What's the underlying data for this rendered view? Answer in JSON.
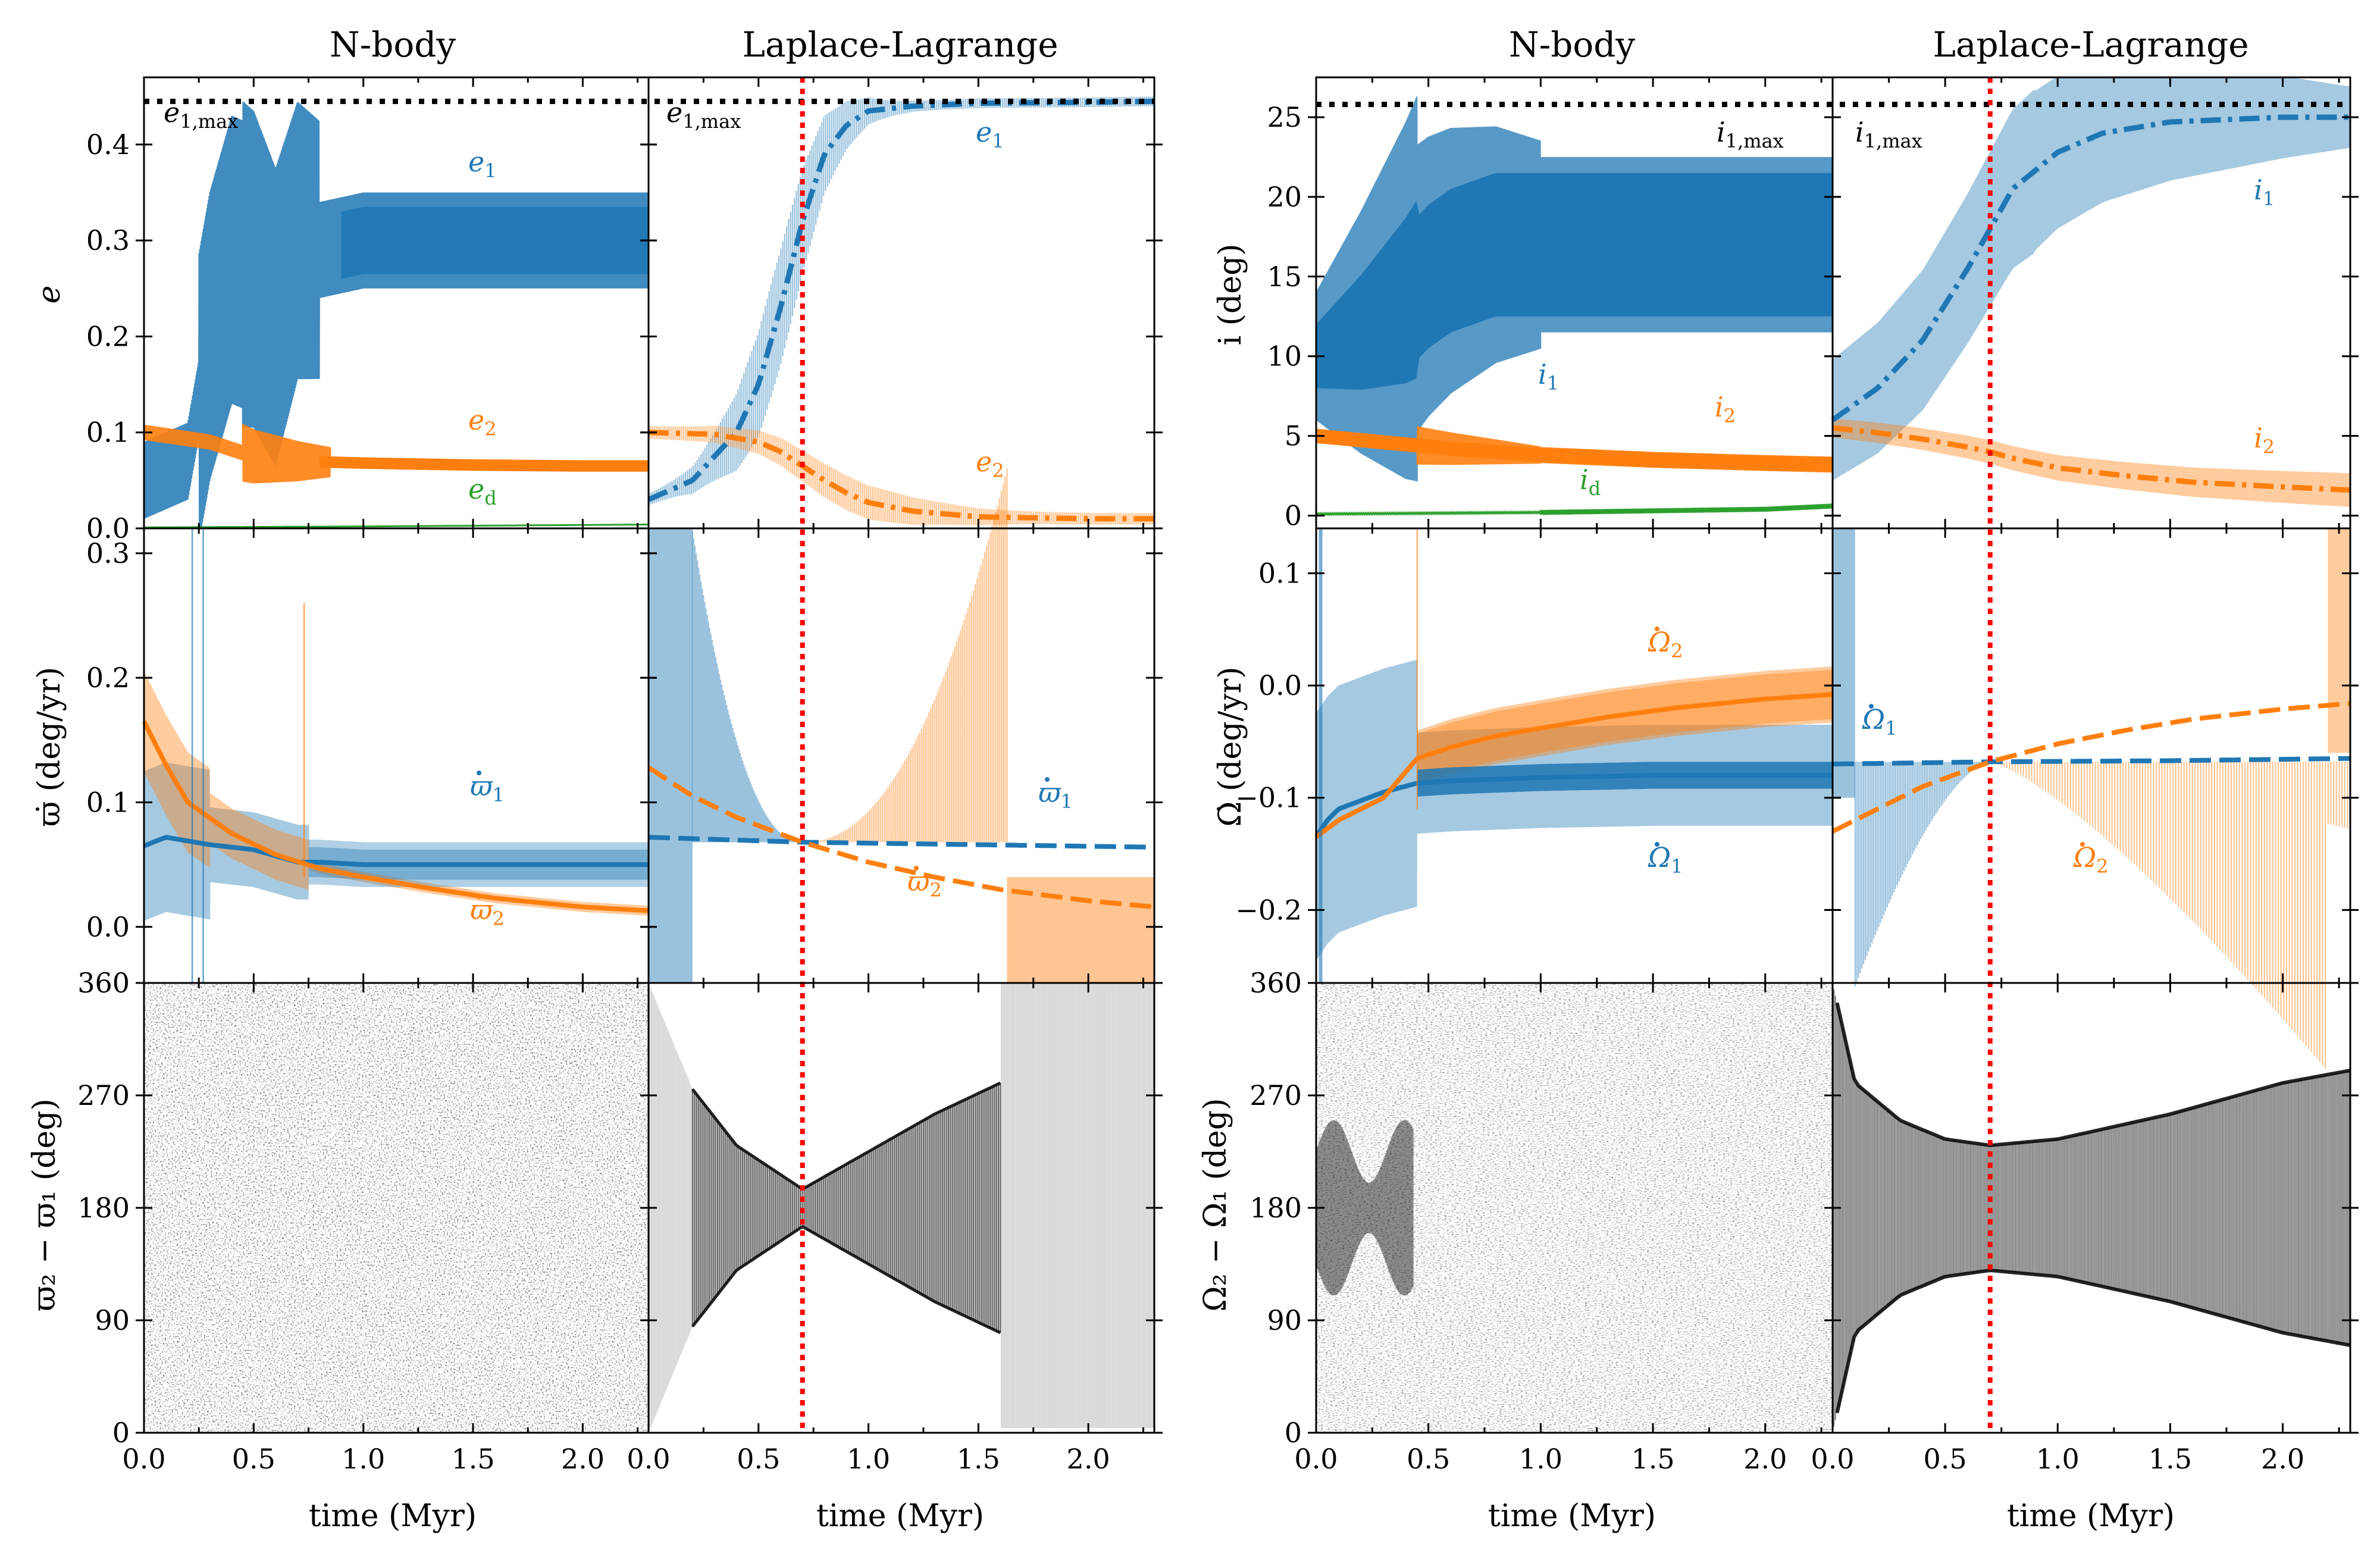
{
  "colors": {
    "c1": "#1f77b4",
    "c2": "#ff7f0e",
    "cd": "#2ca02c",
    "marker": "#ff0000",
    "ink": "#000000"
  },
  "titles": {
    "left_nbody": "N-body",
    "left_ll": "Laplace-Lagrange",
    "right_nbody": "N-body",
    "right_ll": "Laplace-Lagrange"
  },
  "x_axis": {
    "label": "time (Myr)",
    "ticks": [
      "0.0",
      "0.5",
      "1.0",
      "1.5",
      "2.0"
    ],
    "ticks_ll": [
      "0.0",
      "0.5",
      "1.0",
      "1.5",
      "2.0"
    ],
    "range": [
      0,
      2.3
    ],
    "marker_time": 0.7
  },
  "y_labels": {
    "e": "e",
    "varpi_dot": "ϖ̇ (deg/yr)",
    "dvarpi": "ϖ₂ − ϖ₁ (deg)",
    "i": "i (deg)",
    "Omega_dot": "Ω̇ (deg/yr)",
    "dOmega": "Ω₂ − Ω₁ (deg)"
  },
  "y_ticks": {
    "e": [
      "0.0",
      "0.1",
      "0.2",
      "0.3",
      "0.4"
    ],
    "varpi_dot": [
      "0.0",
      "0.1",
      "0.2",
      "0.3"
    ],
    "angle": [
      "0",
      "90",
      "180",
      "270",
      "360"
    ],
    "i": [
      "0",
      "5",
      "10",
      "15",
      "20",
      "25"
    ],
    "Omega_dot": [
      "−0.2",
      "−0.1",
      "0.0",
      "0.1"
    ]
  },
  "labels": {
    "e1max": "e1,max",
    "e1": "e1",
    "e2": "e2",
    "ed": "ed",
    "w1": "ϖ̇1",
    "w2": "ϖ̇2",
    "i1max": "i1,max",
    "i1": "i1",
    "i2": "i2",
    "id": "id",
    "O1": "Ω̇1",
    "O2": "Ω̇2"
  },
  "chart_data": [
    {
      "type": "line",
      "panel": "N-body eccentricity",
      "xlabel": "",
      "ylabel": "e",
      "ylim": [
        0,
        0.47
      ],
      "xlim": [
        0,
        2.3
      ],
      "reference_lines": [
        {
          "name": "e1,max",
          "y": 0.445
        }
      ],
      "series": [
        {
          "name": "e1",
          "x": [
            0,
            0.2,
            0.3,
            0.4,
            0.5,
            0.6,
            0.7,
            0.8,
            1.0,
            1.5,
            2.0,
            2.3
          ],
          "values": [
            0.05,
            0.07,
            0.2,
            0.28,
            0.27,
            0.22,
            0.3,
            0.29,
            0.3,
            0.3,
            0.3,
            0.3
          ]
        },
        {
          "name": "e2",
          "x": [
            0,
            0.3,
            0.5,
            0.7,
            1.0,
            1.5,
            2.0,
            2.3
          ],
          "values": [
            0.1,
            0.09,
            0.075,
            0.07,
            0.068,
            0.066,
            0.065,
            0.065
          ]
        },
        {
          "name": "ed",
          "x": [
            0,
            1.0,
            2.3
          ],
          "values": [
            0.001,
            0.002,
            0.004
          ]
        }
      ]
    },
    {
      "type": "line",
      "panel": "Laplace-Lagrange eccentricity",
      "ylim": [
        0,
        0.47
      ],
      "xlim": [
        0,
        2.3
      ],
      "marker_time": 0.7,
      "reference_lines": [
        {
          "name": "e1,max",
          "y": 0.445
        }
      ],
      "series": [
        {
          "name": "e1",
          "x": [
            0,
            0.2,
            0.4,
            0.5,
            0.6,
            0.7,
            0.8,
            0.9,
            1.0,
            1.2,
            1.5,
            2.0,
            2.3
          ],
          "values": [
            0.03,
            0.05,
            0.1,
            0.15,
            0.23,
            0.32,
            0.39,
            0.42,
            0.435,
            0.44,
            0.443,
            0.444,
            0.445
          ]
        },
        {
          "name": "e2",
          "x": [
            0,
            0.3,
            0.5,
            0.6,
            0.7,
            0.8,
            0.9,
            1.0,
            1.2,
            1.5,
            2.0,
            2.3
          ],
          "values": [
            0.1,
            0.098,
            0.09,
            0.08,
            0.065,
            0.05,
            0.037,
            0.027,
            0.018,
            0.012,
            0.01,
            0.01
          ]
        }
      ]
    },
    {
      "type": "line",
      "panel": "N-body precession rate",
      "ylabel": "ϖ̇ (deg/yr)",
      "ylim": [
        -0.045,
        0.32
      ],
      "xlim": [
        0,
        2.3
      ],
      "series": [
        {
          "name": "ϖ̇1",
          "x": [
            0,
            0.1,
            0.3,
            0.5,
            0.7,
            0.8,
            1.0,
            1.5,
            2.0,
            2.3
          ],
          "values": [
            0.065,
            0.072,
            0.066,
            0.062,
            0.052,
            0.052,
            0.05,
            0.05,
            0.05,
            0.05
          ]
        },
        {
          "name": "ϖ̇2",
          "x": [
            0,
            0.1,
            0.2,
            0.4,
            0.6,
            0.8,
            1.0,
            1.3,
            1.6,
            2.0,
            2.3
          ],
          "values": [
            0.165,
            0.13,
            0.1,
            0.075,
            0.058,
            0.047,
            0.04,
            0.031,
            0.023,
            0.016,
            0.013
          ]
        }
      ]
    },
    {
      "type": "line",
      "panel": "Laplace-Lagrange precession rate",
      "ylim": [
        -0.045,
        0.32
      ],
      "xlim": [
        0,
        2.3
      ],
      "marker_time": 0.7,
      "series": [
        {
          "name": "ϖ̇1",
          "x": [
            0,
            0.7,
            1.5,
            2.3
          ],
          "values": [
            0.072,
            0.068,
            0.066,
            0.064
          ]
        },
        {
          "name": "ϖ̇2",
          "x": [
            0,
            0.2,
            0.4,
            0.7,
            1.0,
            1.3,
            1.6,
            2.0,
            2.3
          ],
          "values": [
            0.128,
            0.105,
            0.088,
            0.068,
            0.052,
            0.04,
            0.03,
            0.021,
            0.016
          ]
        }
      ]
    },
    {
      "type": "scatter",
      "panel": "N-body apsidal angle",
      "xlabel": "time (Myr)",
      "ylabel": "ϖ₂ − ϖ₁ (deg)",
      "ylim": [
        0,
        360
      ],
      "xlim": [
        0,
        2.3
      ]
    },
    {
      "type": "scatter",
      "panel": "Laplace-Lagrange apsidal angle",
      "xlabel": "time (Myr)",
      "ylim": [
        0,
        360
      ],
      "xlim": [
        0,
        2.3
      ],
      "marker_time": 0.7,
      "envelope": {
        "center": 180,
        "x": [
          0,
          0.2,
          0.4,
          0.7,
          1.0,
          1.3,
          1.6
        ],
        "half_width": [
          180,
          95,
          50,
          15,
          45,
          75,
          100
        ]
      }
    },
    {
      "type": "line",
      "panel": "N-body inclination",
      "ylabel": "i (deg)",
      "ylim": [
        -0.8,
        27.5
      ],
      "xlim": [
        0,
        2.3
      ],
      "reference_lines": [
        {
          "name": "i1,max",
          "y": 25.8
        }
      ],
      "series": [
        {
          "name": "i1",
          "x": [
            0,
            0.2,
            0.4,
            0.5,
            0.6,
            0.8,
            1.0,
            1.5,
            2.0,
            2.3
          ],
          "values": [
            10,
            11.5,
            13.5,
            15,
            16,
            17,
            17,
            17,
            17,
            17
          ]
        },
        {
          "name": "i2",
          "x": [
            0,
            0.3,
            0.6,
            1.0,
            1.5,
            2.0,
            2.3
          ],
          "values": [
            5,
            4.6,
            4.2,
            3.8,
            3.5,
            3.3,
            3.2
          ]
        },
        {
          "name": "id",
          "x": [
            0,
            1.0,
            2.0,
            2.3
          ],
          "values": [
            0.1,
            0.2,
            0.4,
            0.6
          ]
        }
      ]
    },
    {
      "type": "line",
      "panel": "Laplace-Lagrange inclination",
      "ylim": [
        -0.8,
        27.5
      ],
      "xlim": [
        0,
        2.3
      ],
      "marker_time": 0.7,
      "reference_lines": [
        {
          "name": "i1,max",
          "y": 25.8
        }
      ],
      "series": [
        {
          "name": "i1",
          "x": [
            0,
            0.2,
            0.4,
            0.6,
            0.7,
            0.8,
            1.0,
            1.2,
            1.5,
            2.0,
            2.3
          ],
          "values": [
            6,
            8,
            11,
            15.5,
            18,
            20.5,
            22.8,
            24,
            24.7,
            25,
            25
          ]
        },
        {
          "name": "i2",
          "x": [
            0,
            0.2,
            0.4,
            0.6,
            0.7,
            0.8,
            1.0,
            1.3,
            1.6,
            2.0,
            2.3
          ],
          "values": [
            5.5,
            5.2,
            4.8,
            4.3,
            4,
            3.6,
            3,
            2.5,
            2.1,
            1.8,
            1.6
          ]
        }
      ]
    },
    {
      "type": "line",
      "panel": "N-body nodal rate",
      "ylabel": "Ω̇ (deg/yr)",
      "ylim": [
        -0.265,
        0.14
      ],
      "xlim": [
        0,
        2.3
      ],
      "series": [
        {
          "name": "Ω̇1",
          "x": [
            0,
            0.05,
            0.1,
            0.3,
            0.45,
            0.6,
            1.0,
            1.5,
            2.0,
            2.3
          ],
          "values": [
            -0.135,
            -0.12,
            -0.11,
            -0.095,
            -0.087,
            -0.085,
            -0.082,
            -0.08,
            -0.08,
            -0.08
          ]
        },
        {
          "name": "Ω̇2",
          "x": [
            0,
            0.1,
            0.3,
            0.45,
            0.6,
            0.8,
            1.0,
            1.3,
            1.6,
            2.0,
            2.3
          ],
          "values": [
            -0.135,
            -0.12,
            -0.1,
            -0.065,
            -0.055,
            -0.045,
            -0.038,
            -0.028,
            -0.02,
            -0.012,
            -0.008
          ]
        }
      ]
    },
    {
      "type": "line",
      "panel": "Laplace-Lagrange nodal rate",
      "ylim": [
        -0.265,
        0.14
      ],
      "xlim": [
        0,
        2.3
      ],
      "marker_time": 0.7,
      "series": [
        {
          "name": "Ω̇1",
          "x": [
            0,
            0.7,
            1.5,
            2.3
          ],
          "values": [
            -0.07,
            -0.068,
            -0.067,
            -0.065
          ]
        },
        {
          "name": "Ω̇2",
          "x": [
            0,
            0.2,
            0.4,
            0.7,
            1.0,
            1.3,
            1.6,
            2.0,
            2.3
          ],
          "values": [
            -0.13,
            -0.11,
            -0.09,
            -0.068,
            -0.052,
            -0.04,
            -0.03,
            -0.021,
            -0.016
          ]
        }
      ]
    },
    {
      "type": "scatter",
      "panel": "N-body nodal angle",
      "xlabel": "time (Myr)",
      "ylabel": "Ω₂ − Ω₁ (deg)",
      "ylim": [
        0,
        360
      ],
      "xlim": [
        0,
        2.3
      ]
    },
    {
      "type": "scatter",
      "panel": "Laplace-Lagrange nodal angle",
      "xlabel": "time (Myr)",
      "ylim": [
        0,
        360
      ],
      "xlim": [
        0,
        2.3
      ],
      "marker_time": 0.7,
      "envelope": {
        "center": 180,
        "x": [
          0,
          0.1,
          0.3,
          0.5,
          0.7,
          1.0,
          1.5,
          2.0,
          2.3
        ],
        "half_width": [
          180,
          100,
          70,
          55,
          50,
          55,
          75,
          100,
          110
        ]
      }
    }
  ]
}
